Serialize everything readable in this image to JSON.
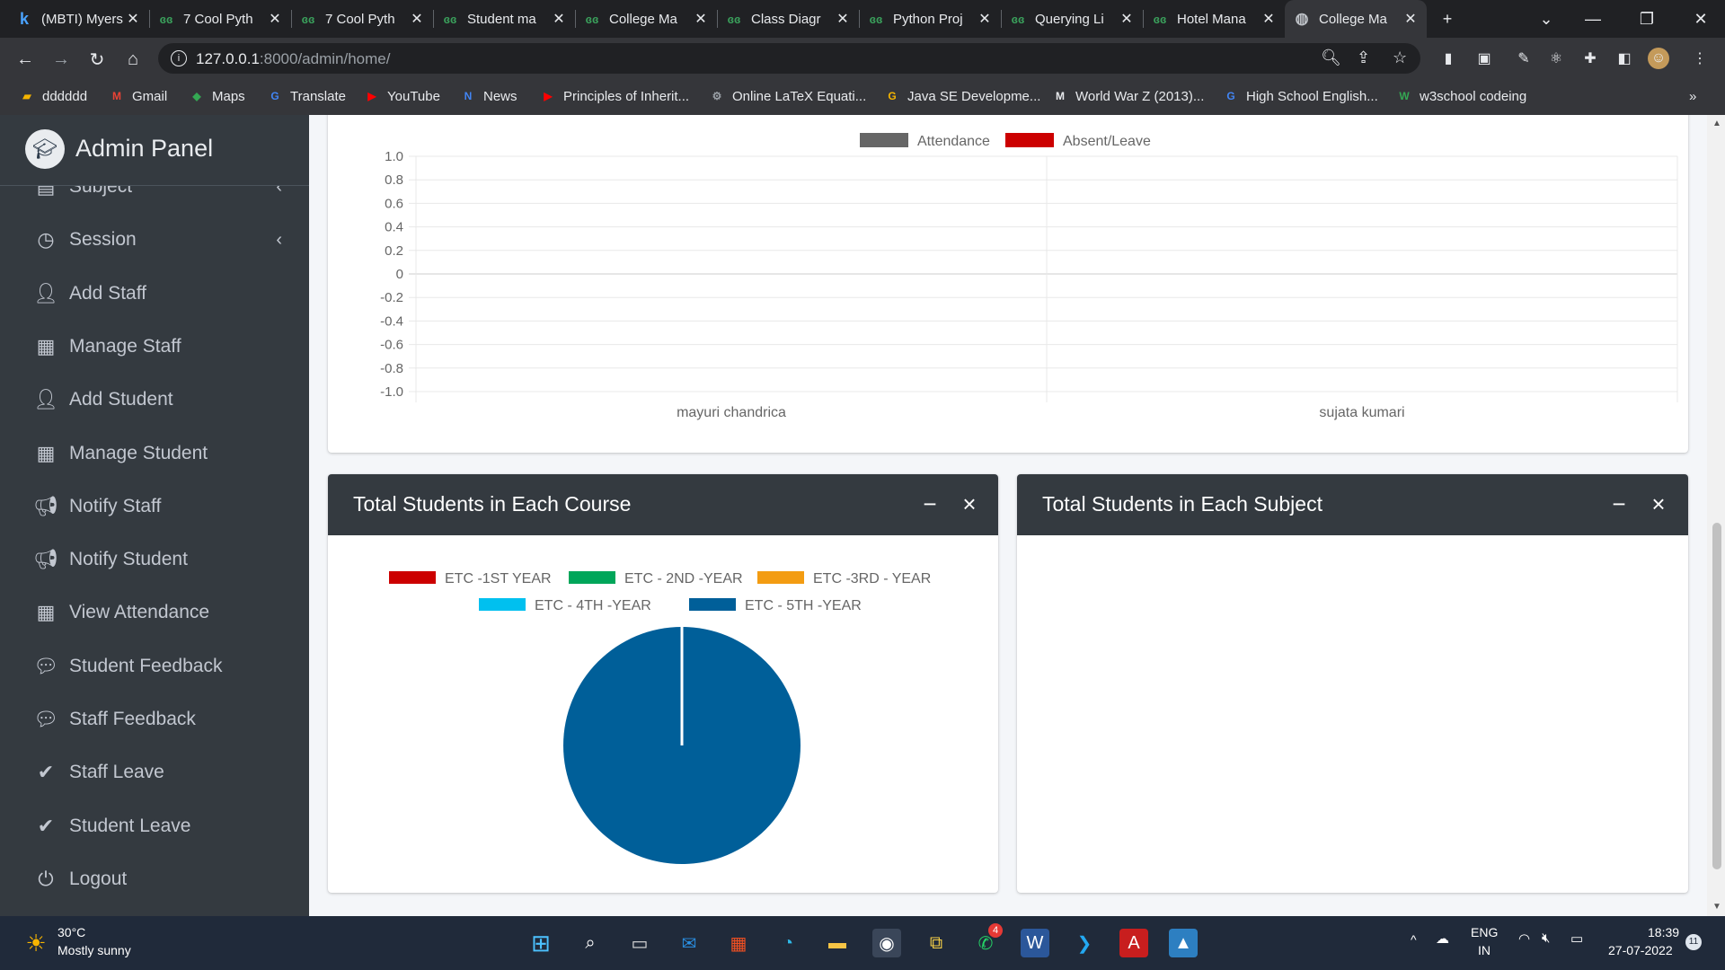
{
  "browser": {
    "tabs": [
      {
        "icon": "k",
        "title": "(MBTI) Myers",
        "active": false
      },
      {
        "icon": "GG",
        "title": "7 Cool Pyth",
        "active": false
      },
      {
        "icon": "GG",
        "title": "7 Cool Pyth",
        "active": false
      },
      {
        "icon": "GG",
        "title": "Student ma",
        "active": false
      },
      {
        "icon": "GG",
        "title": "College Ma",
        "active": false
      },
      {
        "icon": "GG",
        "title": "Class Diagr",
        "active": false
      },
      {
        "icon": "GG",
        "title": "Python Proj",
        "active": false
      },
      {
        "icon": "GG",
        "title": "Querying Li",
        "active": false
      },
      {
        "icon": "GG",
        "title": "Hotel Mana",
        "active": false
      },
      {
        "icon": "globe",
        "title": "College Ma",
        "active": true
      }
    ],
    "url_host": "127.0.0.1",
    "url_rest": ":8000/admin/home/",
    "bookmarks": [
      {
        "label": "dddddd",
        "icon": "folder-icon",
        "color": "#f4b400"
      },
      {
        "label": "Gmail",
        "icon": "gmail-icon",
        "color": "#ea4335"
      },
      {
        "label": "Maps",
        "icon": "maps-icon",
        "color": "#34a853"
      },
      {
        "label": "Translate",
        "icon": "translate-icon",
        "color": "#4285f4"
      },
      {
        "label": "YouTube",
        "icon": "youtube-icon",
        "color": "#ff0000"
      },
      {
        "label": "News",
        "icon": "news-icon",
        "color": "#4285f4"
      },
      {
        "label": "Principles of Inherit...",
        "icon": "youtube-icon",
        "color": "#ff0000"
      },
      {
        "label": "Online LaTeX Equati...",
        "icon": "gear-icon",
        "color": "#9aa0a6"
      },
      {
        "label": "Java SE Developme...",
        "icon": "g-icon",
        "color": "#f4b400"
      },
      {
        "label": "World War Z (2013)...",
        "icon": "m-icon",
        "color": "#e8eaed"
      },
      {
        "label": "High School English...",
        "icon": "google-icon",
        "color": "#4285f4"
      },
      {
        "label": "w3school codeing",
        "icon": "w-icon",
        "color": "#34a853"
      }
    ]
  },
  "sidebar": {
    "brand": "Admin Panel",
    "items": [
      {
        "label": "Subject",
        "icon": "book-icon",
        "arrow": true
      },
      {
        "label": "Session",
        "icon": "clock-icon",
        "arrow": true
      },
      {
        "label": "Add Staff",
        "icon": "user-plus-icon",
        "arrow": false
      },
      {
        "label": "Manage Staff",
        "icon": "grid-icon",
        "arrow": false
      },
      {
        "label": "Add Student",
        "icon": "user-plus-icon",
        "arrow": false
      },
      {
        "label": "Manage Student",
        "icon": "grid-icon",
        "arrow": false
      },
      {
        "label": "Notify Staff",
        "icon": "bullhorn-icon",
        "arrow": false
      },
      {
        "label": "Notify Student",
        "icon": "bullhorn-icon",
        "arrow": false
      },
      {
        "label": "View Attendance",
        "icon": "calendar-icon",
        "arrow": false
      },
      {
        "label": "Student Feedback",
        "icon": "comment-icon",
        "arrow": false
      },
      {
        "label": "Staff Feedback",
        "icon": "comment-icon",
        "arrow": false
      },
      {
        "label": "Staff Leave",
        "icon": "check-double-icon",
        "arrow": false
      },
      {
        "label": "Student Leave",
        "icon": "check-double-icon",
        "arrow": false
      },
      {
        "label": "Logout",
        "icon": "power-icon",
        "arrow": false
      }
    ]
  },
  "cards": {
    "course_title": "Total Students in Each Course",
    "subject_title": "Total Students in Each Subject"
  },
  "chart_data": [
    {
      "type": "bar",
      "categories": [
        "mayuri chandrica",
        "sujata kumari"
      ],
      "series": [
        {
          "name": "Attendance",
          "values": [
            0,
            0
          ],
          "color": "#666666"
        },
        {
          "name": "Absent/Leave",
          "values": [
            0,
            0
          ],
          "color": "#cc0000"
        }
      ],
      "ylim": [
        -1.0,
        1.0
      ],
      "yticks": [
        "1.0",
        "0.8",
        "0.6",
        "0.4",
        "0.2",
        "0",
        "-0.2",
        "-0.4",
        "-0.6",
        "-0.8",
        "-1.0"
      ],
      "legend_position": "top",
      "grid": true
    },
    {
      "type": "pie",
      "categories": [
        "ETC -1ST YEAR",
        "ETC - 2ND -YEAR",
        "ETC -3RD - YEAR",
        "ETC - 4TH -YEAR",
        "ETC - 5TH -YEAR"
      ],
      "values": [
        0,
        0,
        0,
        0,
        1
      ],
      "colors": [
        "#cc0000",
        "#00a65a",
        "#f39c12",
        "#00c0ef",
        "#005f99"
      ],
      "legend_position": "top"
    }
  ],
  "taskbar": {
    "temperature": "30°C",
    "weather": "Mostly sunny",
    "lang": "ENG",
    "region": "IN",
    "time": "18:39",
    "date": "27-07-2022",
    "whatsapp_badge": "4",
    "notif_count": "11"
  }
}
